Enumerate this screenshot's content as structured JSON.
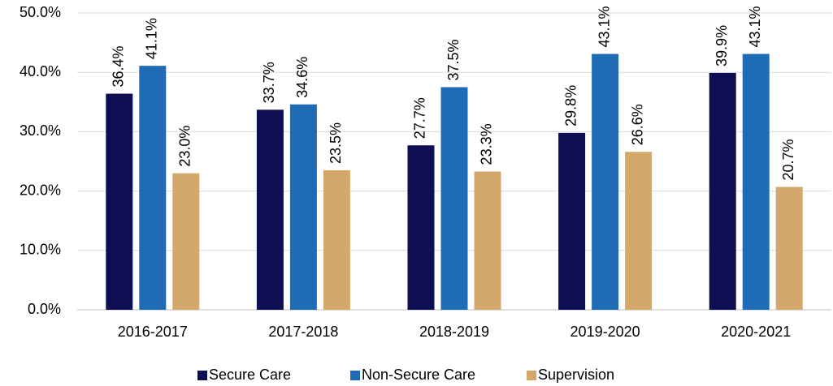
{
  "chart_data": {
    "type": "bar",
    "categories": [
      "2016-2017",
      "2017-2018",
      "2018-2019",
      "2019-2020",
      "2020-2021"
    ],
    "series": [
      {
        "name": "Secure Care",
        "color": "#0d0f52",
        "values": [
          36.4,
          33.7,
          27.7,
          29.8,
          39.9
        ],
        "value_labels": [
          "36.4%",
          "33.7%",
          "27.7%",
          "29.8%",
          "39.9%"
        ]
      },
      {
        "name": "Non-Secure Care",
        "color": "#1f6bb5",
        "values": [
          41.1,
          34.6,
          37.5,
          43.1,
          43.1
        ],
        "value_labels": [
          "41.1%",
          "34.6%",
          "37.5%",
          "43.1%",
          "43.1%"
        ]
      },
      {
        "name": "Supervision",
        "color": "#d4a86a",
        "values": [
          23.0,
          23.5,
          23.3,
          26.6,
          20.7
        ],
        "value_labels": [
          "23.0%",
          "23.5%",
          "23.3%",
          "26.6%",
          "20.7%"
        ]
      }
    ],
    "ylim": [
      0,
      50
    ],
    "yticks": [
      {
        "value": 0,
        "label": "0.0%"
      },
      {
        "value": 10,
        "label": "10.0%"
      },
      {
        "value": 20,
        "label": "20.0%"
      },
      {
        "value": 30,
        "label": "30.0%"
      },
      {
        "value": 40,
        "label": "40.0%"
      },
      {
        "value": 50,
        "label": "50.0%"
      }
    ],
    "grid": true,
    "legend": "bottom"
  }
}
